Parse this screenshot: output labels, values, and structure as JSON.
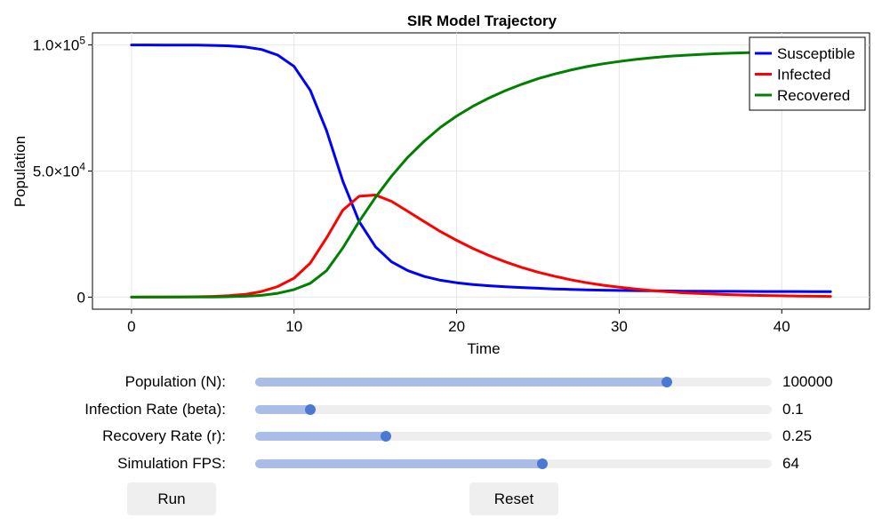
{
  "chart_data": {
    "type": "line",
    "title": "SIR Model Trajectory",
    "xlabel": "Time",
    "ylabel": "Population",
    "xlim": [
      -2.4,
      45.4
    ],
    "ylim": [
      -4800,
      104800
    ],
    "grid": true,
    "legend_position": "top-right",
    "xticks": [
      0,
      10,
      20,
      30,
      40
    ],
    "xtick_labels": [
      "0",
      "10",
      "20",
      "30",
      "40"
    ],
    "yticks": [
      0,
      50000,
      100000
    ],
    "ytick_labels": [
      {
        "mantissa": "0",
        "exponent": ""
      },
      {
        "mantissa": "5.0×10",
        "exponent": "4"
      },
      {
        "mantissa": "1.0×10",
        "exponent": "5"
      }
    ],
    "x": [
      0,
      1,
      2,
      3,
      4,
      5,
      6,
      7,
      8,
      9,
      10,
      11,
      12,
      13,
      14,
      15,
      16,
      17,
      18,
      19,
      20,
      21,
      22,
      23,
      24,
      25,
      26,
      27,
      28,
      29,
      30,
      31,
      32,
      33,
      34,
      35,
      36,
      37,
      38,
      39,
      40,
      41,
      42,
      43
    ],
    "series": [
      {
        "name": "Susceptible",
        "color": "#0000ff",
        "values": [
          100000,
          99990,
          99980,
          99960,
          99920,
          99840,
          99650,
          99200,
          98200,
          96000,
          91500,
          82000,
          66000,
          46000,
          30000,
          20000,
          14000,
          10500,
          8200,
          6700,
          5700,
          5000,
          4500,
          4100,
          3800,
          3500,
          3250,
          3050,
          2900,
          2750,
          2650,
          2550,
          2480,
          2420,
          2370,
          2330,
          2300,
          2270,
          2250,
          2230,
          2210,
          2200,
          2190,
          2180
        ]
      },
      {
        "name": "Infected",
        "color": "#ff0000",
        "values": [
          10,
          20,
          40,
          80,
          150,
          280,
          550,
          1100,
          2200,
          4200,
          7500,
          13500,
          23500,
          34500,
          40000,
          40500,
          38000,
          34000,
          30000,
          26000,
          22500,
          19300,
          16500,
          14000,
          11800,
          9900,
          8300,
          6900,
          5700,
          4700,
          3900,
          3200,
          2600,
          2100,
          1700,
          1400,
          1150,
          950,
          780,
          640,
          520,
          430,
          350,
          290
        ]
      },
      {
        "name": "Recovered",
        "color": "#008000",
        "values": [
          0,
          5,
          10,
          20,
          40,
          80,
          160,
          350,
          700,
          1500,
          3000,
          5500,
          10500,
          19500,
          30000,
          39500,
          48000,
          55500,
          61800,
          67300,
          71800,
          75700,
          79000,
          81900,
          84400,
          86600,
          88450,
          90050,
          91400,
          92550,
          93450,
          94250,
          94920,
          95480,
          95930,
          96270,
          96550,
          96780,
          96970,
          97130,
          97270,
          97370,
          97460,
          97530
        ]
      }
    ]
  },
  "sliders": [
    {
      "label": "Population (N):",
      "value": "100000",
      "fraction": 0.797
    },
    {
      "label": "Infection Rate (beta):",
      "value": "0.1",
      "fraction": 0.106
    },
    {
      "label": "Recovery Rate (r):",
      "value": "0.25",
      "fraction": 0.253
    },
    {
      "label": "Simulation FPS:",
      "value": "64",
      "fraction": 0.556
    }
  ],
  "buttons": {
    "run_label": "Run",
    "reset_label": "Reset"
  }
}
